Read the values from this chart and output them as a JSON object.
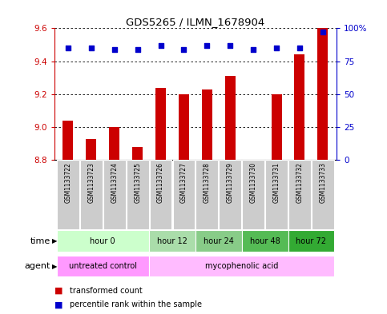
{
  "title": "GDS5265 / ILMN_1678904",
  "samples": [
    "GSM1133722",
    "GSM1133723",
    "GSM1133724",
    "GSM1133725",
    "GSM1133726",
    "GSM1133727",
    "GSM1133728",
    "GSM1133729",
    "GSM1133730",
    "GSM1133731",
    "GSM1133732",
    "GSM1133733"
  ],
  "bar_values": [
    9.04,
    8.93,
    9.0,
    8.88,
    9.24,
    9.2,
    9.23,
    9.31,
    8.8,
    9.2,
    9.44,
    9.6
  ],
  "percentile_values": [
    85,
    85,
    84,
    84,
    87,
    84,
    87,
    87,
    84,
    85,
    85,
    97
  ],
  "bar_bottom": 8.8,
  "ylim_left": [
    8.8,
    9.6
  ],
  "ylim_right": [
    0,
    100
  ],
  "yticks_left": [
    8.8,
    9.0,
    9.2,
    9.4,
    9.6
  ],
  "yticks_right": [
    0,
    25,
    50,
    75,
    100
  ],
  "bar_color": "#cc0000",
  "percentile_color": "#0000cc",
  "grid_color": "#000000",
  "time_groups": [
    {
      "label": "hour 0",
      "start": 0,
      "end": 4,
      "color": "#ccffcc"
    },
    {
      "label": "hour 12",
      "start": 4,
      "end": 6,
      "color": "#aaddaa"
    },
    {
      "label": "hour 24",
      "start": 6,
      "end": 8,
      "color": "#88cc88"
    },
    {
      "label": "hour 48",
      "start": 8,
      "end": 10,
      "color": "#55bb55"
    },
    {
      "label": "hour 72",
      "start": 10,
      "end": 12,
      "color": "#33aa33"
    }
  ],
  "agent_groups": [
    {
      "label": "untreated control",
      "start": 0,
      "end": 4,
      "color": "#ff99ff"
    },
    {
      "label": "mycophenolic acid",
      "start": 4,
      "end": 12,
      "color": "#ffbbff"
    }
  ],
  "sample_bg_color": "#cccccc",
  "legend_bar_label": "transformed count",
  "legend_pct_label": "percentile rank within the sample",
  "time_label": "time",
  "agent_label": "agent"
}
